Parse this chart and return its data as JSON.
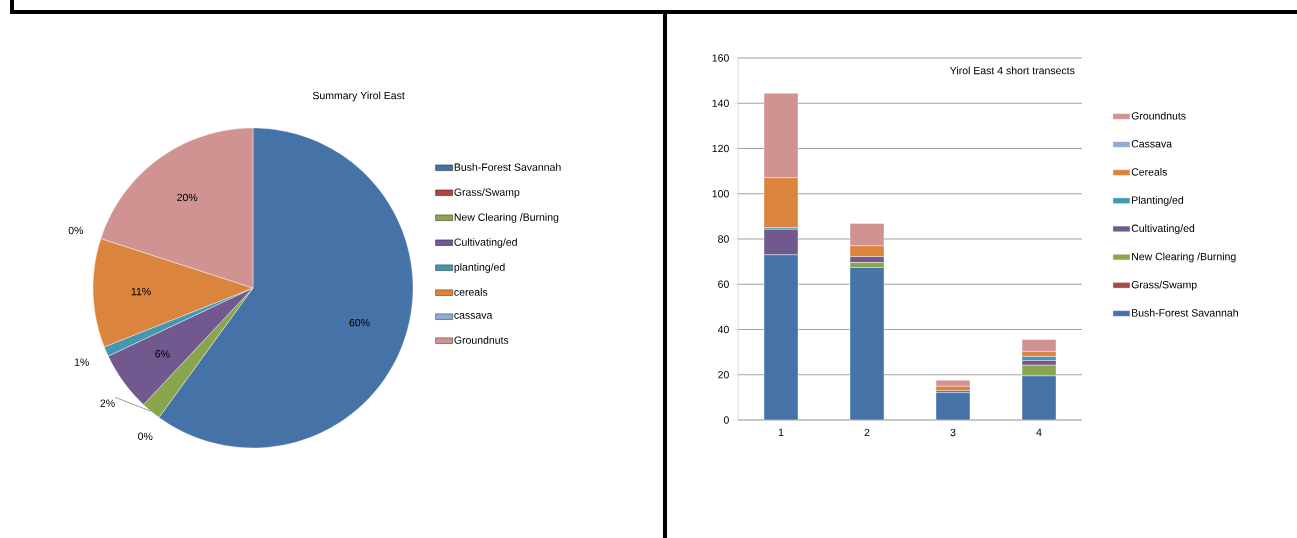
{
  "chart_data": [
    {
      "type": "pie",
      "title": "Summary Yirol East",
      "legend": "right",
      "categories": [
        "Bush-Forest Savannah",
        "Grass/Swamp",
        "New Clearing /Burning",
        "Cultivating/ed",
        "planting/ed",
        "cereals",
        "cassava",
        "Groundnuts"
      ],
      "values": [
        60,
        0,
        2,
        6,
        1,
        11,
        0,
        20
      ],
      "value_labels": [
        "60%",
        "0%",
        "2%",
        "6%",
        "1%",
        "11%",
        "0%",
        "20%"
      ],
      "colors": [
        "#4572a7",
        "#aa4643",
        "#89a54e",
        "#71588f",
        "#4198af",
        "#db843d",
        "#93a9cf",
        "#d19392"
      ]
    },
    {
      "type": "bar",
      "stacked": true,
      "title": "Yirol East 4 short transects",
      "legend": "right",
      "grid": "y",
      "categories": [
        "1",
        "2",
        "3",
        "4"
      ],
      "ylim": [
        0,
        160
      ],
      "yticks": [
        0,
        20,
        40,
        60,
        80,
        100,
        120,
        140,
        160
      ],
      "series": [
        {
          "name": "Bush-Forest Savannah",
          "color": "#4572a7",
          "values": [
            73,
            67.4,
            12.1,
            19.5
          ]
        },
        {
          "name": "Grass/Swamp",
          "color": "#aa4643",
          "values": [
            0,
            0,
            0,
            0
          ]
        },
        {
          "name": "New Clearing /Burning",
          "color": "#89a54e",
          "values": [
            0,
            2.2,
            0,
            4.7
          ]
        },
        {
          "name": "Cultivating/ed",
          "color": "#71588f",
          "values": [
            11.3,
            2.6,
            0.8,
            2.1
          ]
        },
        {
          "name": "Planting/ed",
          "color": "#4198af",
          "values": [
            0.8,
            0,
            0,
            1.8
          ]
        },
        {
          "name": "Cereals",
          "color": "#db843d",
          "values": [
            22,
            4.8,
            2,
            2.2
          ]
        },
        {
          "name": "Cassava",
          "color": "#93a9cf",
          "values": [
            0,
            0,
            0,
            0
          ]
        },
        {
          "name": "Groundnuts",
          "color": "#d19392",
          "values": [
            37.3,
            9.9,
            2.7,
            5.3
          ]
        }
      ]
    }
  ]
}
